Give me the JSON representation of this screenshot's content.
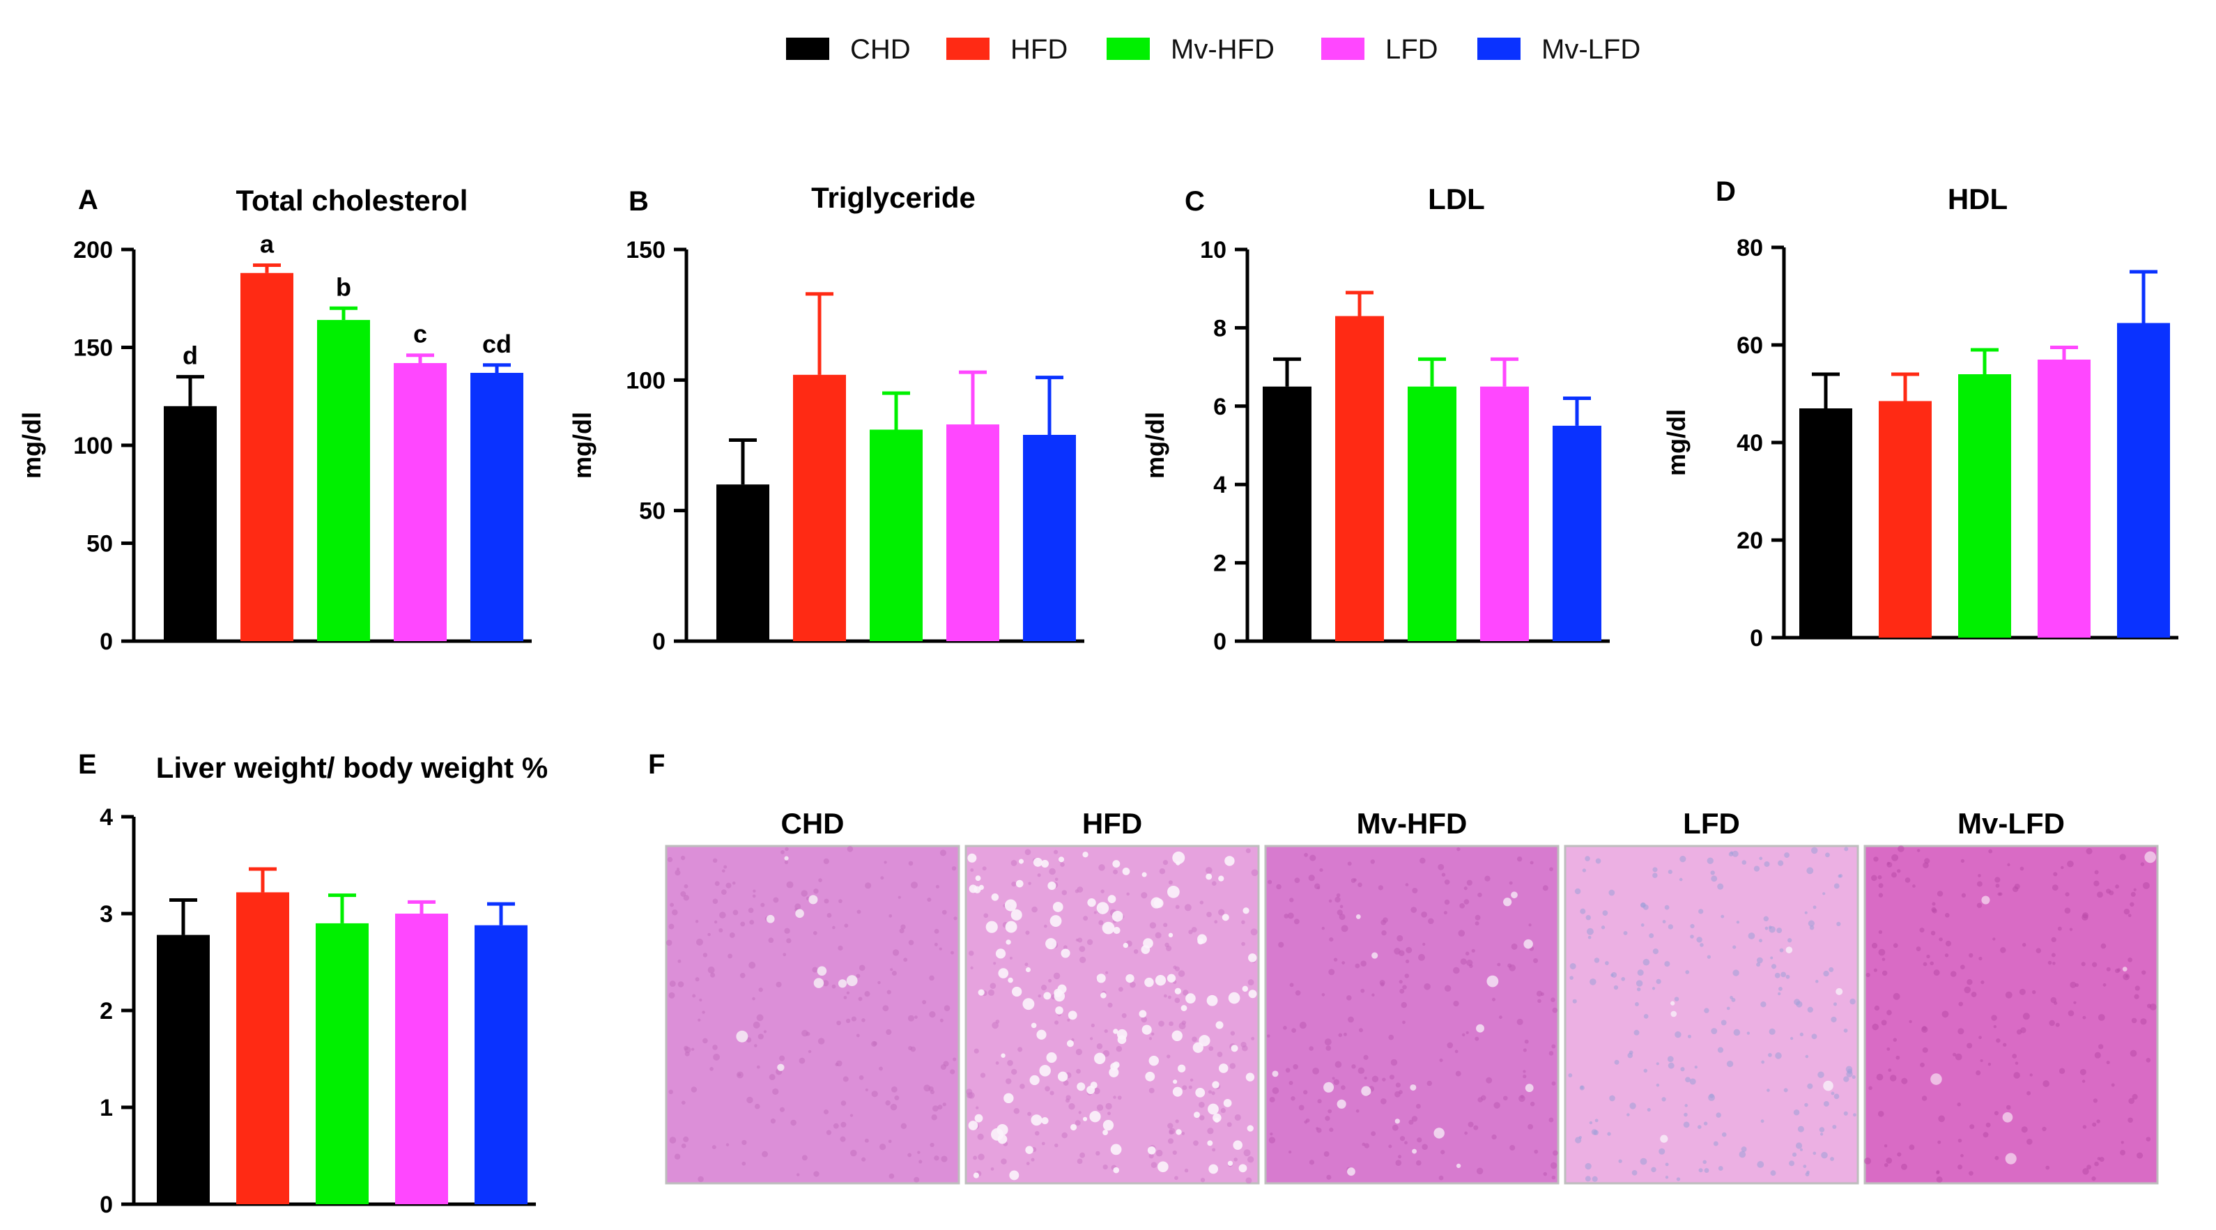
{
  "legend": [
    {
      "name": "CHD",
      "color": "#000000"
    },
    {
      "name": "HFD",
      "color": "#ff2a14"
    },
    {
      "name": "Mv-HFD",
      "color": "#00f000"
    },
    {
      "name": "LFD",
      "color": "#ff47ff"
    },
    {
      "name": "Mv-LFD",
      "color": "#0a32ff"
    }
  ],
  "chart_data": [
    {
      "panel": "A",
      "type": "bar",
      "title": "Total cholesterol",
      "categories": [
        "CHD",
        "HFD",
        "Mv-HFD",
        "LFD",
        "Mv-LFD"
      ],
      "values": [
        120,
        188,
        164,
        142,
        137
      ],
      "errors": [
        15,
        4,
        6,
        4,
        4
      ],
      "significance": [
        "d",
        "a",
        "b",
        "c",
        "cd"
      ],
      "ylabel": "mg/dl",
      "ylim": [
        0,
        200
      ],
      "yticks": [
        0,
        50,
        100,
        150,
        200
      ]
    },
    {
      "panel": "B",
      "type": "bar",
      "title": "Triglyceride",
      "categories": [
        "CHD",
        "HFD",
        "Mv-HFD",
        "LFD",
        "Mv-LFD"
      ],
      "values": [
        60,
        102,
        81,
        83,
        79
      ],
      "errors": [
        17,
        31,
        14,
        20,
        22
      ],
      "ylabel": "mg/dl",
      "ylim": [
        0,
        150
      ],
      "yticks": [
        0,
        50,
        100,
        150
      ]
    },
    {
      "panel": "C",
      "type": "bar",
      "title": "LDL",
      "categories": [
        "CHD",
        "HFD",
        "Mv-HFD",
        "LFD",
        "Mv-LFD"
      ],
      "values": [
        6.5,
        8.3,
        6.5,
        6.5,
        5.5
      ],
      "errors": [
        0.7,
        0.6,
        0.7,
        0.7,
        0.7
      ],
      "ylabel": "mg/dl",
      "ylim": [
        0,
        10
      ],
      "yticks": [
        0,
        2,
        4,
        6,
        8,
        10
      ]
    },
    {
      "panel": "D",
      "type": "bar",
      "title": "HDL",
      "categories": [
        "CHD",
        "HFD",
        "Mv-HFD",
        "LFD",
        "Mv-LFD"
      ],
      "values": [
        47,
        48.5,
        54,
        57,
        64.5
      ],
      "errors": [
        7,
        5.5,
        5,
        2.5,
        10.5
      ],
      "ylabel": "mg/dl",
      "ylim": [
        0,
        80
      ],
      "yticks": [
        0,
        20,
        40,
        60,
        80
      ]
    },
    {
      "panel": "E",
      "type": "bar",
      "title": "Liver weight/ body weight %",
      "categories": [
        "CHD",
        "HFD",
        "Mv-HFD",
        "LFD",
        "Mv-LFD"
      ],
      "values": [
        2.78,
        3.22,
        2.9,
        3.0,
        2.88
      ],
      "errors": [
        0.36,
        0.24,
        0.29,
        0.12,
        0.22
      ],
      "ylabel": "",
      "ylim": [
        0,
        4
      ],
      "yticks": [
        0,
        1,
        2,
        3,
        4
      ]
    }
  ],
  "histology": {
    "panel": "F",
    "images": [
      {
        "label": "CHD",
        "base": "#dc8fd8",
        "spot": "#c46fc0",
        "vac": "#f4e8f4",
        "vac_count": 10
      },
      {
        "label": "HFD",
        "base": "#e6a2de",
        "spot": "#cc78c6",
        "vac": "#fbf3fb",
        "vac_count": 140
      },
      {
        "label": "Mv-HFD",
        "base": "#d77bcf",
        "spot": "#bd5ab4",
        "vac": "#f3def2",
        "vac_count": 18
      },
      {
        "label": "LFD",
        "base": "#ecb0e3",
        "spot": "#9fa0d8",
        "vac": "#f7eaf6",
        "vac_count": 6
      },
      {
        "label": "Mv-LFD",
        "base": "#d96bc5",
        "spot": "#b94aa7",
        "vac": "#f0c8e8",
        "vac_count": 6
      }
    ]
  }
}
